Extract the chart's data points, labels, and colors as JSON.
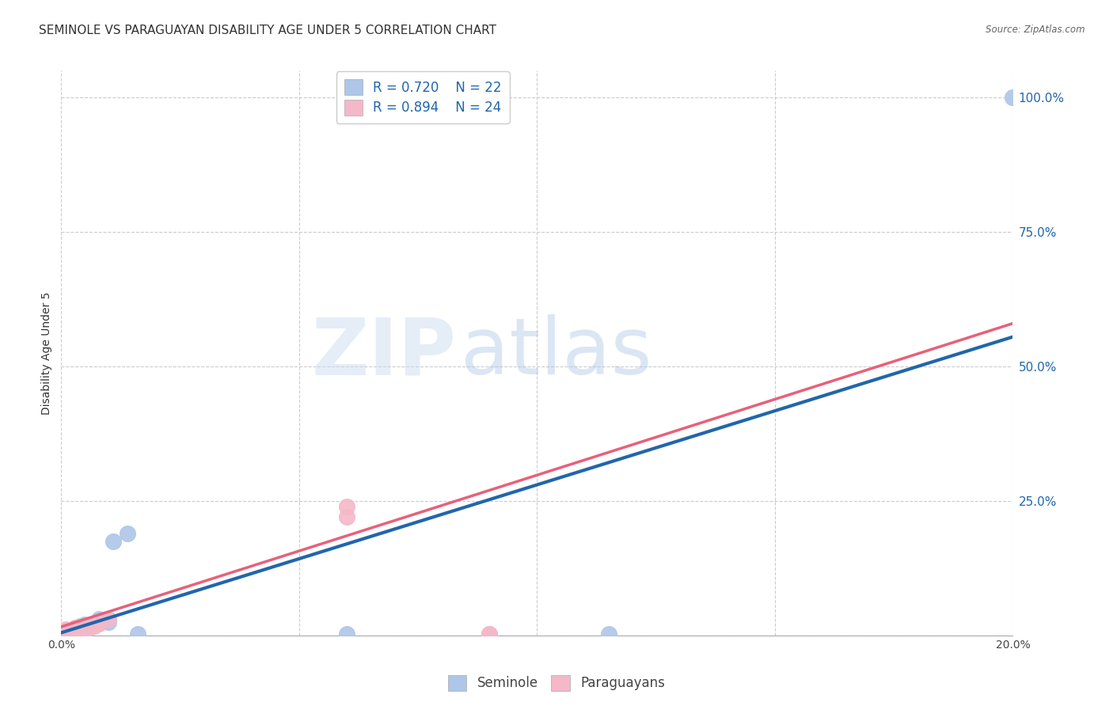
{
  "title": "SEMINOLE VS PARAGUAYAN DISABILITY AGE UNDER 5 CORRELATION CHART",
  "source": "Source: ZipAtlas.com",
  "ylabel": "Disability Age Under 5",
  "xlim": [
    0.0,
    0.2
  ],
  "ylim": [
    0.0,
    1.05
  ],
  "seminole_R": 0.72,
  "seminole_N": 22,
  "paraguayan_R": 0.894,
  "paraguayan_N": 24,
  "seminole_color": "#aec6e8",
  "seminole_line_color": "#2166ac",
  "paraguayan_color": "#f4b8c8",
  "paraguayan_line_color": "#e8607a",
  "background_color": "#ffffff",
  "grid_color": "#cccccc",
  "watermark_zip": "ZIP",
  "watermark_atlas": "atlas",
  "seminole_line_x": [
    0.0,
    0.2
  ],
  "seminole_line_y": [
    0.005,
    0.555
  ],
  "paraguayan_line_x": [
    0.0,
    0.2
  ],
  "paraguayan_line_y": [
    0.016,
    0.58
  ],
  "seminole_x": [
    0.001,
    0.001,
    0.002,
    0.002,
    0.003,
    0.003,
    0.003,
    0.004,
    0.004,
    0.005,
    0.005,
    0.006,
    0.007,
    0.008,
    0.009,
    0.01,
    0.011,
    0.014,
    0.016,
    0.06,
    0.115,
    0.2
  ],
  "seminole_y": [
    0.005,
    0.008,
    0.004,
    0.01,
    0.006,
    0.008,
    0.015,
    0.012,
    0.018,
    0.01,
    0.02,
    0.015,
    0.022,
    0.03,
    0.028,
    0.025,
    0.175,
    0.19,
    0.002,
    0.002,
    0.002,
    1.0
  ],
  "paraguayan_x": [
    0.001,
    0.001,
    0.001,
    0.002,
    0.002,
    0.002,
    0.003,
    0.003,
    0.003,
    0.004,
    0.004,
    0.004,
    0.004,
    0.005,
    0.005,
    0.005,
    0.006,
    0.007,
    0.008,
    0.01,
    0.06,
    0.06,
    0.09,
    0.09
  ],
  "paraguayan_y": [
    0.005,
    0.008,
    0.012,
    0.004,
    0.006,
    0.01,
    0.008,
    0.01,
    0.014,
    0.008,
    0.01,
    0.012,
    0.016,
    0.008,
    0.01,
    0.012,
    0.014,
    0.018,
    0.022,
    0.03,
    0.22,
    0.24,
    0.002,
    0.002
  ],
  "title_fontsize": 11,
  "label_fontsize": 10,
  "tick_fontsize": 10,
  "legend_fontsize": 12
}
